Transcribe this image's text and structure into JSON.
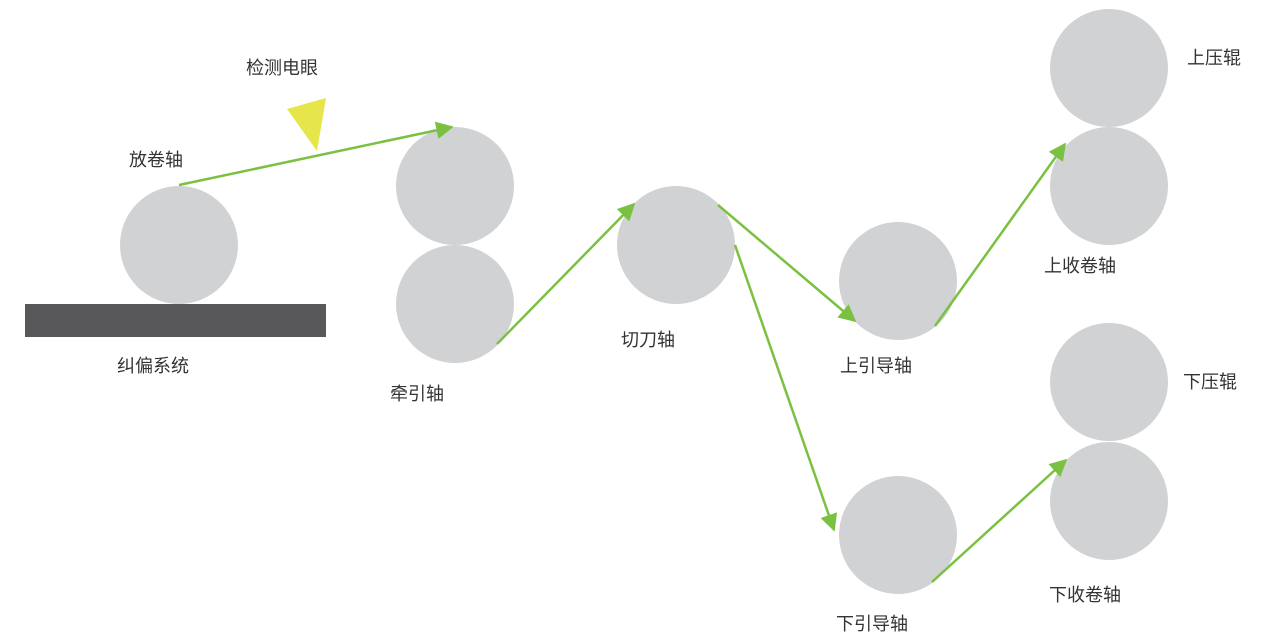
{
  "labels": {
    "sensor": "检测电眼",
    "unwind": "放卷轴",
    "correction": "纠偏系统",
    "traction": "牵引轴",
    "cutter": "切刀轴",
    "upper_guide": "上引导轴",
    "lower_guide": "下引导轴",
    "upper_press": "上压辊",
    "upper_rewind": "上收卷轴",
    "lower_press": "下压辊",
    "lower_rewind": "下收卷轴"
  },
  "colors": {
    "roller": "#d1d2d4",
    "base": "#58585a",
    "sensor": "#e6e64a",
    "path": "#7ac142",
    "text": "#333333"
  }
}
